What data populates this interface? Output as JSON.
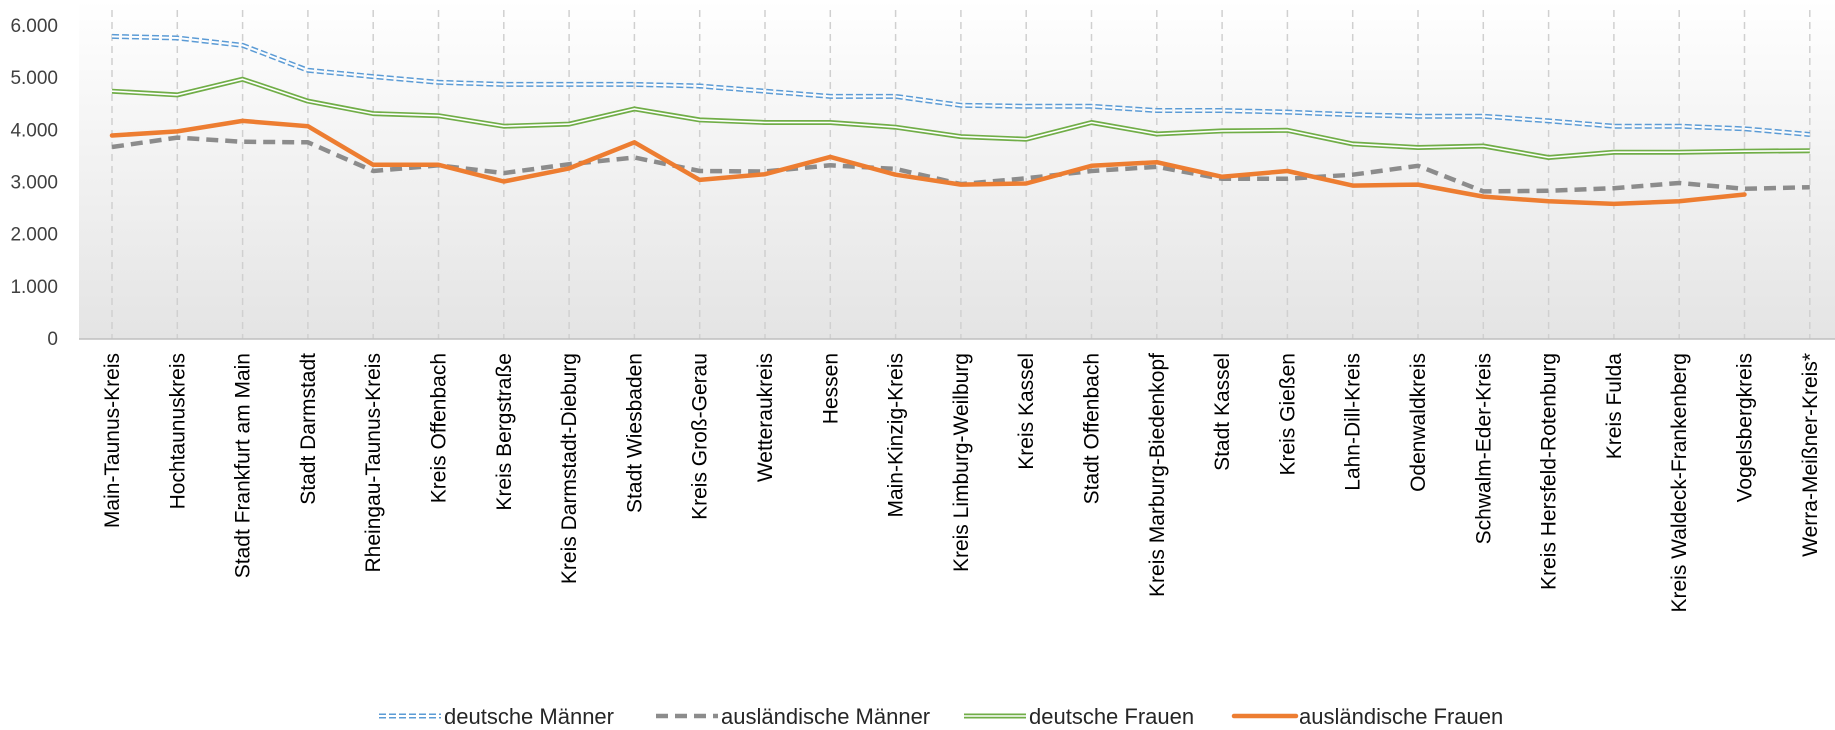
{
  "chart_data": {
    "type": "line",
    "title": "",
    "xlabel": "",
    "ylabel": "",
    "ylim": [
      0,
      6000
    ],
    "yticks": [
      "0",
      "1.000",
      "2.000",
      "3.000",
      "4.000",
      "5.000",
      "6.000"
    ],
    "grid": "vertical dashed",
    "legend_position": "bottom",
    "categories": [
      "Main-Taunus-Kreis",
      "Hochtaunuskreis",
      "Stadt Frankfurt am Main",
      "Stadt Darmstadt",
      "Rheingau-Taunus-Kreis",
      "Kreis Offenbach",
      "Kreis Bergstraße",
      "Kreis Darmstadt-Dieburg",
      "Stadt Wiesbaden",
      "Kreis Groß-Gerau",
      "Wetteraukreis",
      "Hessen",
      "Main-Kinzig-Kreis",
      "Kreis Limburg-Weilburg",
      "Kreis Kassel",
      "Stadt Offenbach",
      "Kreis Marburg-Biedenkopf",
      "Stadt Kassel",
      "Kreis Gießen",
      "Lahn-Dill-Kreis",
      "Odenwaldkreis",
      "Schwalm-Eder-Kreis",
      "Kreis Hersfeld-Rotenburg",
      "Kreis Fulda",
      "Kreis Waldeck-Frankenberg",
      "Vogelsbergkreis",
      "Werra-Meißner-Kreis*"
    ],
    "series": [
      {
        "name": "deutsche Männer",
        "style": "double-dashed",
        "color": "#5b9bd5",
        "values": [
          5800,
          5770,
          5630,
          5150,
          5030,
          4920,
          4880,
          4880,
          4880,
          4850,
          4750,
          4650,
          4650,
          4480,
          4460,
          4460,
          4380,
          4380,
          4350,
          4300,
          4270,
          4270,
          4180,
          4080,
          4080,
          4030,
          3920
        ]
      },
      {
        "name": "ausländische Männer",
        "style": "dashed",
        "color": "#8c8c8c",
        "values": [
          3680,
          3860,
          3780,
          3770,
          3220,
          3330,
          3180,
          3350,
          3480,
          3220,
          3210,
          3330,
          3260,
          2970,
          3080,
          3220,
          3300,
          3070,
          3070,
          3150,
          3320,
          2830,
          2840,
          2890,
          2990,
          2880,
          2910
        ]
      },
      {
        "name": "deutsche Frauen",
        "style": "double-solid",
        "color": "#70ad47",
        "values": [
          4750,
          4680,
          4980,
          4560,
          4320,
          4280,
          4080,
          4120,
          4410,
          4200,
          4150,
          4150,
          4060,
          3880,
          3830,
          4150,
          3930,
          3990,
          4000,
          3740,
          3670,
          3700,
          3480,
          3580,
          3580,
          3600,
          3610
        ]
      },
      {
        "name": "ausländische Frauen",
        "style": "solid",
        "color": "#ed7d31",
        "values": [
          3900,
          3980,
          4180,
          4080,
          3340,
          3340,
          3020,
          3270,
          3770,
          3050,
          3160,
          3490,
          3150,
          2960,
          2980,
          3320,
          3390,
          3110,
          3220,
          2940,
          2960,
          2730,
          2640,
          2590,
          2640,
          2770,
          null
        ]
      }
    ]
  }
}
